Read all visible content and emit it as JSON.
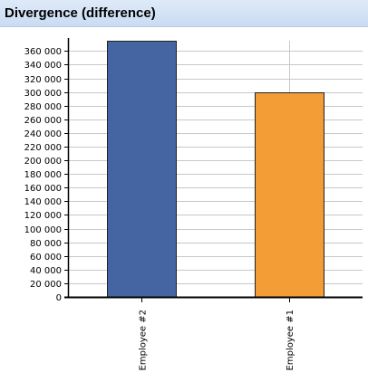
{
  "header": {
    "title": "Divergence (difference)"
  },
  "colors": {
    "grid": "#c8c8c8",
    "axis": "#000000",
    "bar_outline": "#222222"
  },
  "chart_data": {
    "type": "bar",
    "title": "Divergence (difference)",
    "categories": [
      "Employee #2",
      "Employee #1"
    ],
    "values": [
      375000,
      300000
    ],
    "bar_colors": [
      "#4465a2",
      "#f39d37"
    ],
    "xlabel": "",
    "ylabel": "",
    "ylim": [
      0,
      375000
    ],
    "y_ticks": [
      0,
      20000,
      40000,
      60000,
      80000,
      100000,
      120000,
      140000,
      160000,
      180000,
      200000,
      220000,
      240000,
      260000,
      280000,
      300000,
      320000,
      340000,
      360000
    ],
    "y_tick_labels": [
      "0",
      "20 000",
      "40 000",
      "60 000",
      "80 000",
      "100 000",
      "120 000",
      "140 000",
      "160 000",
      "180 000",
      "200 000",
      "220 000",
      "240 000",
      "260 000",
      "280 000",
      "300 000",
      "320 000",
      "340 000",
      "360 000"
    ],
    "grid": true,
    "x_labels_rotated": true,
    "legend": "none"
  }
}
